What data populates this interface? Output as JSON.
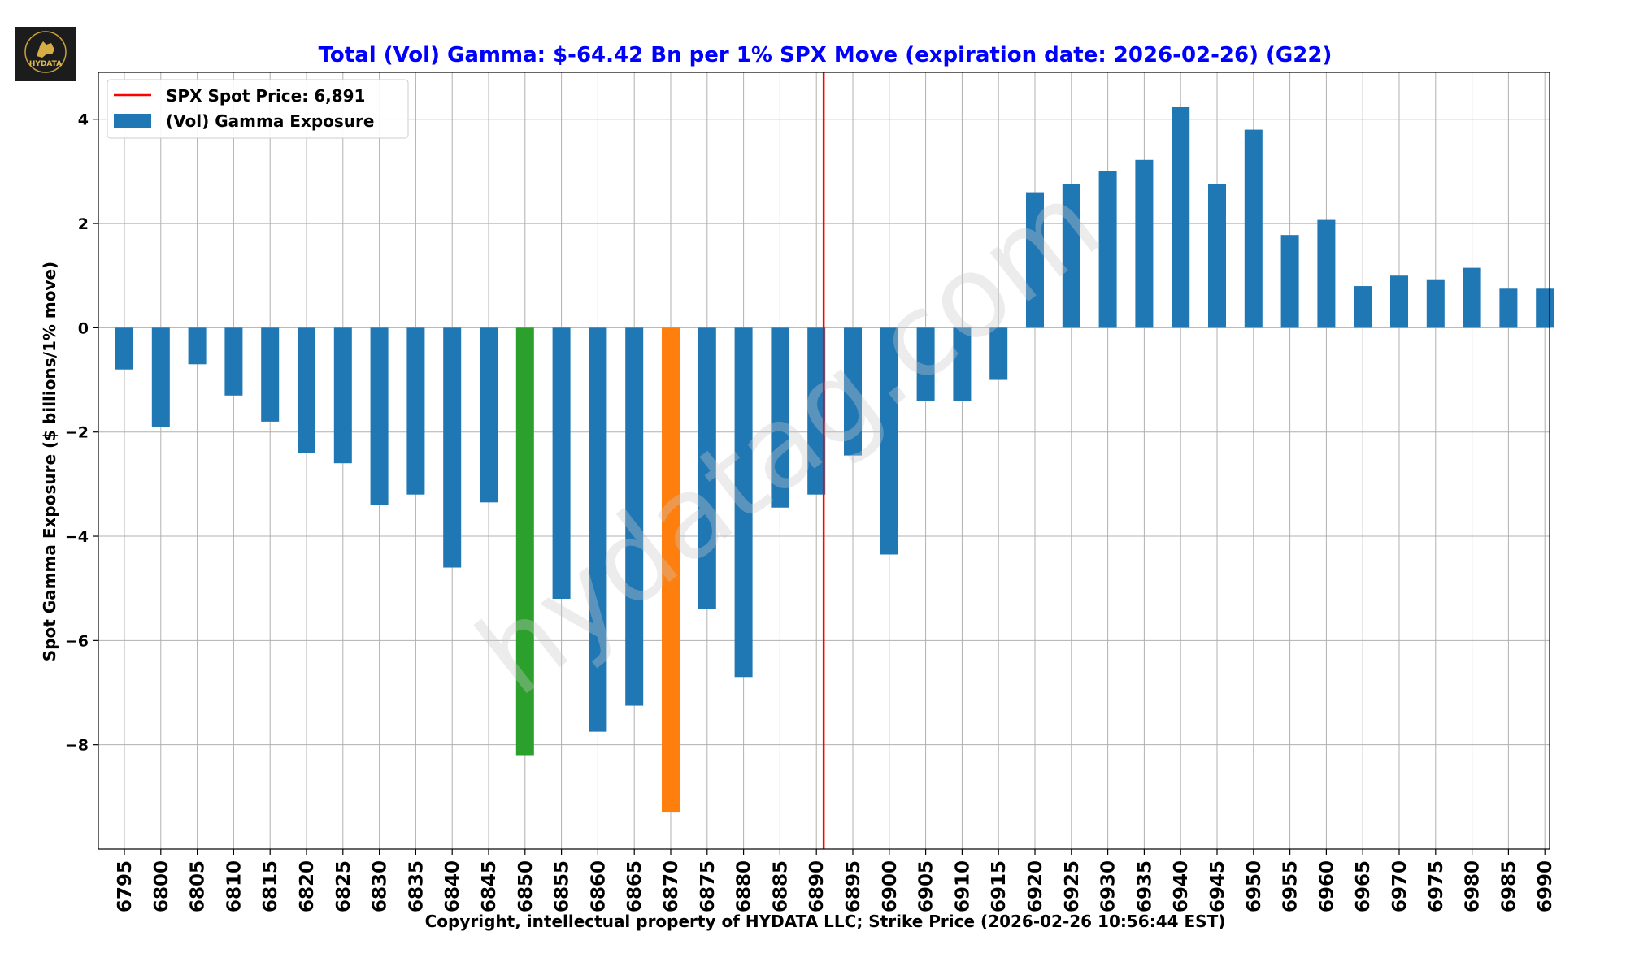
{
  "logo_text": "HYDATA",
  "watermark": "hydatag.com",
  "chart_data": {
    "type": "bar",
    "title": "Total (Vol) Gamma: $-64.42 Bn per 1% SPX Move (expiration date: 2026-02-26) (G22)",
    "xlabel": "Copyright, intellectual property of HYDATA LLC; Strike Price (2026-02-26 10:56:44 EST)",
    "ylabel": "Spot Gamma Exposure ($ billions/1% move)",
    "ylim": [
      -10,
      4.9
    ],
    "yticks": [
      4,
      2,
      0,
      -2,
      -4,
      -6,
      -8
    ],
    "ytick_labels": [
      "4",
      "2",
      "0",
      "−2",
      "−4",
      "−6",
      "−8"
    ],
    "grid": true,
    "legend_position": "top-left",
    "legend": [
      {
        "label": "SPX Spot Price: 6,891",
        "kind": "line",
        "color": "#ff0000"
      },
      {
        "label": "(Vol) Gamma Exposure",
        "kind": "patch",
        "color": "#1f77b4"
      }
    ],
    "spot_price": 6891,
    "categories": [
      "6795",
      "6800",
      "6805",
      "6810",
      "6815",
      "6820",
      "6825",
      "6830",
      "6835",
      "6840",
      "6845",
      "6850",
      "6855",
      "6860",
      "6865",
      "6870",
      "6875",
      "6880",
      "6885",
      "6890",
      "6895",
      "6900",
      "6905",
      "6910",
      "6915",
      "6920",
      "6925",
      "6930",
      "6935",
      "6940",
      "6945",
      "6950",
      "6955",
      "6960",
      "6965",
      "6970",
      "6975",
      "6980",
      "6985",
      "6990"
    ],
    "values": [
      -0.8,
      -1.9,
      -0.7,
      -1.3,
      -1.8,
      -2.4,
      -2.6,
      -3.4,
      -3.2,
      -4.6,
      -3.35,
      -8.2,
      -5.2,
      -7.75,
      -7.25,
      -9.3,
      -5.4,
      -6.7,
      -3.45,
      -3.2,
      -2.45,
      -4.35,
      -1.4,
      -1.4,
      -1.0,
      2.6,
      2.75,
      3.0,
      3.22,
      4.23,
      2.75,
      3.8,
      1.78,
      2.07,
      0.8,
      1.0,
      0.93,
      1.15,
      0.75,
      0.75
    ],
    "colors": {
      "default": "#1f77b4",
      "6850": "#2ca02c",
      "6870": "#ff7f0e",
      "spot_line": "#ff0000",
      "title": "#0000ff"
    }
  }
}
